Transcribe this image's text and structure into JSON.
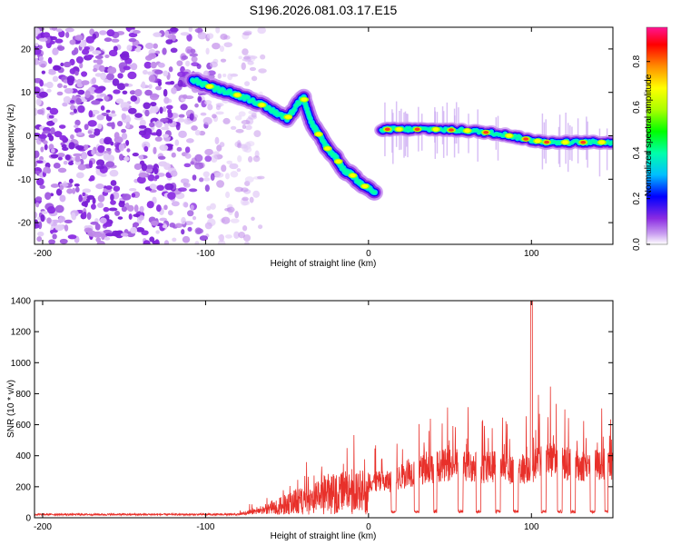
{
  "figure": {
    "title": "S196.2026.081.03.17.E15"
  },
  "chart_data": [
    {
      "type": "heatmap",
      "xlabel": "Height of straight line (km)",
      "ylabel": "Frequency (Hz)",
      "xlim": [
        -205,
        150
      ],
      "ylim": [
        -25,
        25
      ],
      "xticks": [
        -200,
        -100,
        0,
        100
      ],
      "yticks": [
        -20,
        -10,
        0,
        10,
        20
      ],
      "colorbar": {
        "label": "Normalized spectral amplitude",
        "range": [
          0,
          0.95
        ],
        "ticks": [
          0.0,
          0.2,
          0.4,
          0.6,
          0.8
        ]
      },
      "track_segments": [
        {
          "x": [
            -108,
            -95,
            -85,
            -70,
            -60,
            -50,
            -40,
            -35,
            -30,
            -25,
            -20,
            -15,
            -10,
            -5,
            4
          ],
          "y": [
            13,
            11,
            10,
            8,
            6,
            4,
            9,
            3,
            0,
            -3,
            -5,
            -8,
            -9,
            -11,
            -13
          ]
        },
        {
          "x": [
            8,
            20,
            40,
            60,
            80,
            100,
            110,
            130,
            150
          ],
          "y": [
            1.5,
            1.5,
            1.5,
            1.2,
            0.5,
            -1,
            -1.5,
            -1.5,
            -1.5
          ]
        }
      ],
      "noise_region_x": [
        -205,
        -80
      ],
      "grid": false
    },
    {
      "type": "line",
      "xlabel": "Height of straight line (km)",
      "ylabel": "SNR (10 * v/v)",
      "xlim": [
        -205,
        150
      ],
      "ylim": [
        0,
        1400
      ],
      "xticks": [
        -200,
        -100,
        0,
        100
      ],
      "yticks": [
        0,
        200,
        400,
        600,
        800,
        1000,
        1200,
        1400
      ],
      "color": "#e8302a",
      "series": [
        {
          "x": [
            -205,
            -80,
            -70,
            -60,
            -50,
            -40,
            -30,
            -20,
            -10,
            0,
            10,
            20,
            30,
            40,
            50,
            60,
            70,
            80,
            90,
            99,
            100,
            101,
            110,
            120,
            130,
            140,
            150
          ],
          "values": [
            20,
            20,
            60,
            100,
            150,
            200,
            250,
            300,
            280,
            300,
            280,
            330,
            380,
            410,
            430,
            420,
            400,
            420,
            380,
            400,
            1400,
            430,
            460,
            440,
            420,
            430,
            420
          ]
        }
      ],
      "grid": false
    }
  ]
}
